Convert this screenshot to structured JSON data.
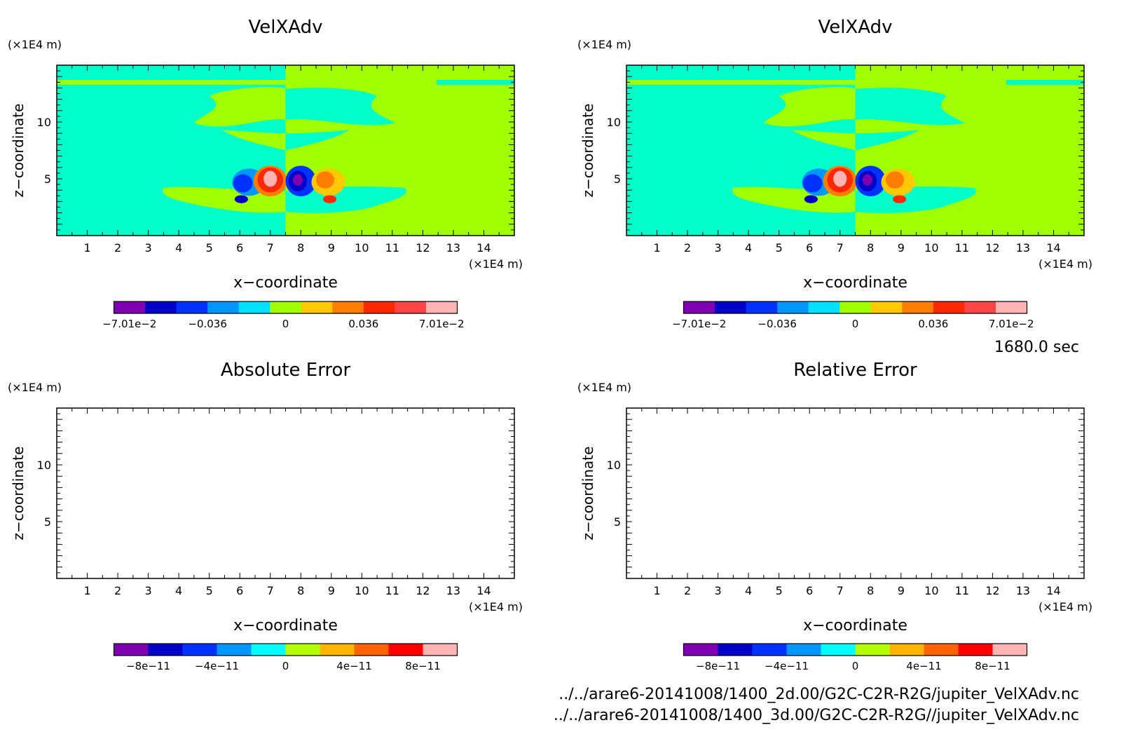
{
  "time_label": "1680.0 sec",
  "file_paths": [
    "../../arare6-20141008/1400_2d.00/G2C-C2R-R2G/jupiter_VelXAdv.nc",
    "../../arare6-20141008/1400_3d.00/G2C-C2R-R2G//jupiter_VelXAdv.nc"
  ],
  "chart_data": [
    {
      "type": "heatmap",
      "title": "VelXAdv",
      "xlabel": "x−coordinate",
      "ylabel": "z−coordinate",
      "x_unit": "(×1E4 m)",
      "y_unit": "(×1E4 m)",
      "xlim": [
        0,
        15
      ],
      "ylim": [
        0,
        15
      ],
      "x_ticks": [
        "1",
        "2",
        "3",
        "4",
        "5",
        "6",
        "7",
        "8",
        "9",
        "10",
        "11",
        "12",
        "13",
        "14"
      ],
      "y_ticks": [
        "5",
        "10"
      ],
      "colorbar": {
        "colors": [
          "#7f00b2",
          "#0000c8",
          "#0032ff",
          "#0096ff",
          "#00e1ff",
          "#a0ff00",
          "#ffc800",
          "#ff7d00",
          "#ff2800",
          "#ff4646",
          "#ffb4b4"
        ],
        "labels": [
          "−7.01e−2",
          "−0.036",
          "0",
          "0.036",
          "7.01e−2"
        ]
      }
    },
    {
      "type": "heatmap",
      "title": "VelXAdv",
      "xlabel": "x−coordinate",
      "ylabel": "z−coordinate",
      "x_unit": "(×1E4 m)",
      "y_unit": "(×1E4 m)",
      "xlim": [
        0,
        15
      ],
      "ylim": [
        0,
        15
      ],
      "x_ticks": [
        "1",
        "2",
        "3",
        "4",
        "5",
        "6",
        "7",
        "8",
        "9",
        "10",
        "11",
        "12",
        "13",
        "14"
      ],
      "y_ticks": [
        "5",
        "10"
      ],
      "colorbar": {
        "colors": [
          "#7f00b2",
          "#0000c8",
          "#0032ff",
          "#0096ff",
          "#00e1ff",
          "#a0ff00",
          "#ffc800",
          "#ff7d00",
          "#ff2800",
          "#ff4646",
          "#ffb4b4"
        ],
        "labels": [
          "−7.01e−2",
          "−0.036",
          "0",
          "0.036",
          "7.01e−2"
        ]
      }
    },
    {
      "type": "heatmap",
      "title": "Absolute Error",
      "xlabel": "x−coordinate",
      "ylabel": "z−coordinate",
      "x_unit": "(×1E4 m)",
      "y_unit": "(×1E4 m)",
      "xlim": [
        0,
        15
      ],
      "ylim": [
        0,
        15
      ],
      "x_ticks": [
        "1",
        "2",
        "3",
        "4",
        "5",
        "6",
        "7",
        "8",
        "9",
        "10",
        "11",
        "12",
        "13",
        "14"
      ],
      "y_ticks": [
        "5",
        "10"
      ],
      "colorbar": {
        "colors": [
          "#7f00b2",
          "#0000c8",
          "#0032ff",
          "#0096ff",
          "#00ffff",
          "#b4ff00",
          "#ffb400",
          "#ff6400",
          "#ff0000",
          "#ffb4b4"
        ],
        "labels": [
          "−8e−11",
          "−4e−11",
          "0",
          "4e−11",
          "8e−11"
        ]
      }
    },
    {
      "type": "heatmap",
      "title": "Relative Error",
      "xlabel": "x−coordinate",
      "ylabel": "z−coordinate",
      "x_unit": "(×1E4 m)",
      "y_unit": "(×1E4 m)",
      "xlim": [
        0,
        15
      ],
      "ylim": [
        0,
        15
      ],
      "x_ticks": [
        "1",
        "2",
        "3",
        "4",
        "5",
        "6",
        "7",
        "8",
        "9",
        "10",
        "11",
        "12",
        "13",
        "14"
      ],
      "y_ticks": [
        "5",
        "10"
      ],
      "colorbar": {
        "colors": [
          "#7f00b2",
          "#0000c8",
          "#0032ff",
          "#0096ff",
          "#00ffff",
          "#b4ff00",
          "#ffb400",
          "#ff6400",
          "#ff0000",
          "#ffb4b4"
        ],
        "labels": [
          "−8e−11",
          "−4e−11",
          "0",
          "4e−11",
          "8e−11"
        ]
      }
    }
  ]
}
